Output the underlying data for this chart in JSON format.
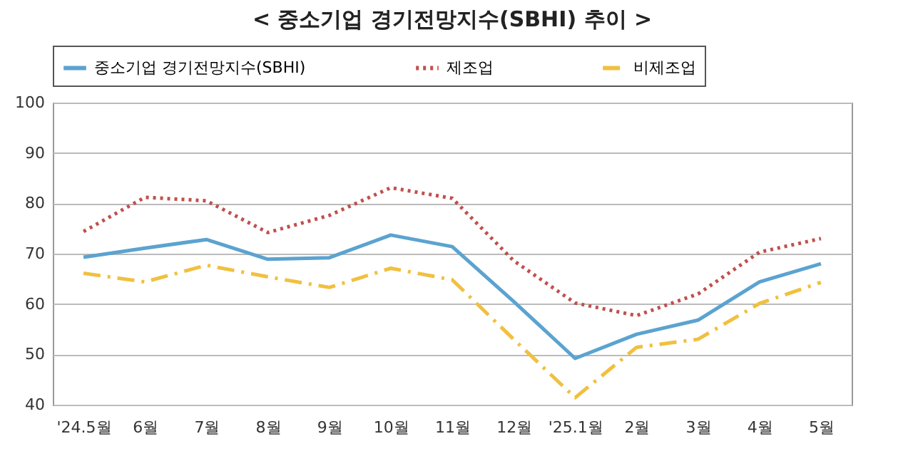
{
  "chart_data": {
    "type": "line",
    "title": "< 중소기업 경기전망지수(SBHI) 추이 >",
    "categories": [
      "'24.5월",
      "6월",
      "7월",
      "8월",
      "9월",
      "10월",
      "11월",
      "12월",
      "'25.1월",
      "2월",
      "3월",
      "4월",
      "5월"
    ],
    "series": [
      {
        "name": "중소기업 경기전망지수(SBHI)",
        "color": "#5ba3d0",
        "line_style": "solid",
        "values": [
          69.3,
          71.1,
          72.8,
          68.9,
          69.2,
          73.7,
          71.4,
          60.5,
          49.2,
          54.0,
          56.8,
          64.4,
          68.0
        ]
      },
      {
        "name": "제조업",
        "color": "#c0504d",
        "line_style": "dotted",
        "values": [
          74.4,
          81.2,
          80.5,
          74.2,
          77.6,
          83.1,
          81.0,
          68.6,
          60.2,
          57.7,
          62.0,
          70.3,
          73.0
        ]
      },
      {
        "name": "비제조업",
        "color": "#f0c040",
        "line_style": "dashed",
        "values": [
          66.1,
          64.4,
          67.7,
          65.4,
          63.3,
          67.1,
          64.8,
          53.0,
          41.4,
          51.4,
          53.0,
          60.1,
          64.3
        ]
      }
    ],
    "ylim": [
      40,
      100
    ],
    "yticks": [
      40,
      50,
      60,
      70,
      80,
      90,
      100
    ],
    "grid": "y",
    "legend": "top",
    "marker": "none"
  }
}
